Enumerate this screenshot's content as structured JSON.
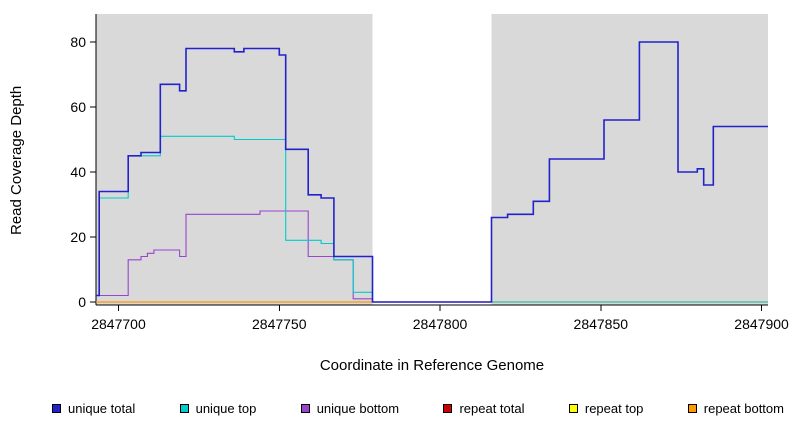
{
  "chart_data": {
    "type": "line",
    "subtype": "step-after",
    "title": "",
    "xlabel": "Coordinate in Reference Genome",
    "ylabel": "Read Coverage Depth",
    "xlim": [
      2847693,
      2847902
    ],
    "ylim": [
      0,
      88
    ],
    "x_ticks": [
      2847700,
      2847750,
      2847800,
      2847850,
      2847900
    ],
    "y_ticks": [
      0,
      20,
      40,
      60,
      80
    ],
    "grid": false,
    "plot_bg": "#d9d9d9",
    "masked_region": {
      "x0": 2847779,
      "x1": 2847816,
      "color": "#ffffff"
    },
    "legend_position": "bottom",
    "series": [
      {
        "name": "repeat total",
        "color": "#cc0000",
        "width": 1.1,
        "points": [
          [
            2847693,
            0
          ]
        ]
      },
      {
        "name": "repeat top",
        "color": "#ffff00",
        "width": 1.1,
        "points": [
          [
            2847693,
            0
          ]
        ]
      },
      {
        "name": "repeat bottom",
        "color": "#ff9900",
        "width": 1.2,
        "points": [
          [
            2847693,
            0
          ]
        ]
      },
      {
        "name": "unique bottom",
        "color": "#9944cc",
        "width": 1.1,
        "points": [
          [
            2847693,
            2
          ],
          [
            2847703,
            13
          ],
          [
            2847707,
            14
          ],
          [
            2847709,
            15
          ],
          [
            2847711,
            16
          ],
          [
            2847719,
            14
          ],
          [
            2847721,
            27
          ],
          [
            2847744,
            28
          ],
          [
            2847759,
            14
          ],
          [
            2847767,
            13
          ],
          [
            2847773,
            1
          ],
          [
            2847779,
            0
          ]
        ]
      },
      {
        "name": "unique top",
        "color": "#00cccc",
        "width": 1.1,
        "points": [
          [
            2847693,
            2
          ],
          [
            2847694,
            32
          ],
          [
            2847703,
            45
          ],
          [
            2847713,
            51
          ],
          [
            2847736,
            50
          ],
          [
            2847752,
            19
          ],
          [
            2847763,
            18
          ],
          [
            2847767,
            13
          ],
          [
            2847773,
            3
          ],
          [
            2847779,
            0
          ]
        ]
      },
      {
        "name": "unique total",
        "color": "#2222cc",
        "width": 1.6,
        "points": [
          [
            2847693,
            2
          ],
          [
            2847694,
            34
          ],
          [
            2847703,
            45
          ],
          [
            2847707,
            46
          ],
          [
            2847713,
            67
          ],
          [
            2847719,
            65
          ],
          [
            2847721,
            78
          ],
          [
            2847736,
            77
          ],
          [
            2847739,
            78
          ],
          [
            2847750,
            76
          ],
          [
            2847752,
            47
          ],
          [
            2847759,
            33
          ],
          [
            2847763,
            32
          ],
          [
            2847767,
            14
          ],
          [
            2847779,
            0
          ],
          [
            2847816,
            26
          ],
          [
            2847821,
            27
          ],
          [
            2847829,
            31
          ],
          [
            2847834,
            44
          ],
          [
            2847851,
            56
          ],
          [
            2847862,
            80
          ],
          [
            2847874,
            40
          ],
          [
            2847880,
            41
          ],
          [
            2847882,
            36
          ],
          [
            2847885,
            54
          ]
        ]
      }
    ],
    "legend": [
      {
        "label": "unique total",
        "color": "#2222cc"
      },
      {
        "label": "unique top",
        "color": "#00cccc"
      },
      {
        "label": "unique bottom",
        "color": "#9944cc"
      },
      {
        "label": "repeat total",
        "color": "#cc0000"
      },
      {
        "label": "repeat top",
        "color": "#ffff00"
      },
      {
        "label": "repeat bottom",
        "color": "#ff9900"
      }
    ]
  }
}
